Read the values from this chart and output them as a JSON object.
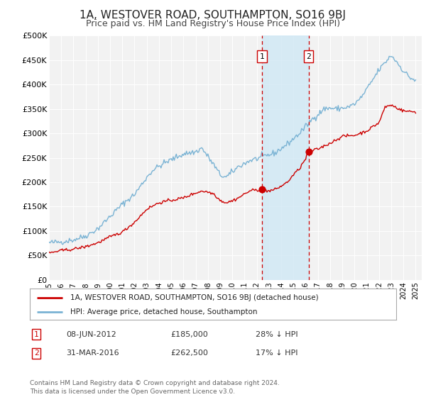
{
  "title": "1A, WESTOVER ROAD, SOUTHAMPTON, SO16 9BJ",
  "subtitle": "Price paid vs. HM Land Registry's House Price Index (HPI)",
  "title_fontsize": 11,
  "subtitle_fontsize": 9,
  "hpi_color": "#7ab3d4",
  "price_color": "#cc0000",
  "background_color": "#ffffff",
  "plot_bg_color": "#f2f2f2",
  "grid_color": "#ffffff",
  "ylim": [
    0,
    500000
  ],
  "yticks": [
    0,
    50000,
    100000,
    150000,
    200000,
    250000,
    300000,
    350000,
    400000,
    450000,
    500000
  ],
  "ytick_labels": [
    "£0",
    "£50K",
    "£100K",
    "£150K",
    "£200K",
    "£250K",
    "£300K",
    "£350K",
    "£400K",
    "£450K",
    "£500K"
  ],
  "xmin": 1995.0,
  "xmax": 2025.5,
  "sale1_date": 2012.44,
  "sale1_price": 185000,
  "sale2_date": 2016.25,
  "sale2_price": 262500,
  "sale1_label": "1",
  "sale2_label": "2",
  "legend_label_price": "1A, WESTOVER ROAD, SOUTHAMPTON, SO16 9BJ (detached house)",
  "legend_label_hpi": "HPI: Average price, detached house, Southampton",
  "annotation1_date": "08-JUN-2012",
  "annotation1_price": "£185,000",
  "annotation1_pct": "28% ↓ HPI",
  "annotation2_date": "31-MAR-2016",
  "annotation2_price": "£262,500",
  "annotation2_pct": "17% ↓ HPI",
  "footer": "Contains HM Land Registry data © Crown copyright and database right 2024.\nThis data is licensed under the Open Government Licence v3.0.",
  "hpi_anchors_x": [
    1995.0,
    1996.0,
    1997.0,
    1998.0,
    1999.0,
    2000.0,
    2001.0,
    2002.0,
    2003.0,
    2003.5,
    2004.5,
    2005.5,
    2006.0,
    2007.0,
    2007.5,
    2008.5,
    2009.0,
    2009.5,
    2010.5,
    2011.5,
    2012.0,
    2012.5,
    2013.5,
    2014.5,
    2015.5,
    2016.5,
    2017.5,
    2018.0,
    2018.5,
    2019.5,
    2020.0,
    2020.5,
    2021.0,
    2021.5,
    2022.0,
    2022.5,
    2023.0,
    2023.5,
    2024.0,
    2024.5,
    2025.0
  ],
  "hpi_anchors_y": [
    76000,
    78000,
    82000,
    90000,
    105000,
    130000,
    155000,
    175000,
    210000,
    225000,
    240000,
    252000,
    258000,
    262000,
    270000,
    235000,
    215000,
    210000,
    232000,
    245000,
    248000,
    252000,
    260000,
    278000,
    300000,
    328000,
    350000,
    352000,
    350000,
    354000,
    360000,
    372000,
    390000,
    410000,
    430000,
    445000,
    460000,
    445000,
    428000,
    415000,
    408000
  ],
  "price_anchors_x": [
    1995.0,
    1996.0,
    1997.0,
    1998.0,
    1999.0,
    2000.0,
    2001.0,
    2002.0,
    2003.0,
    2004.0,
    2005.0,
    2006.0,
    2007.0,
    2007.5,
    2008.0,
    2008.5,
    2009.0,
    2009.5,
    2010.0,
    2010.5,
    2011.0,
    2011.5,
    2012.0,
    2012.44,
    2013.0,
    2013.5,
    2014.0,
    2014.5,
    2015.0,
    2015.5,
    2016.0,
    2016.25,
    2017.0,
    2018.0,
    2019.0,
    2020.0,
    2021.0,
    2022.0,
    2022.5,
    2023.0,
    2023.5,
    2024.0,
    2025.0
  ],
  "price_anchors_y": [
    55000,
    60000,
    63000,
    68000,
    76000,
    88000,
    98000,
    118000,
    145000,
    158000,
    163000,
    168000,
    178000,
    182000,
    180000,
    176000,
    163000,
    158000,
    162000,
    168000,
    176000,
    183000,
    184000,
    185000,
    182000,
    185000,
    192000,
    200000,
    215000,
    228000,
    248000,
    262500,
    268000,
    280000,
    294000,
    296000,
    305000,
    322000,
    354000,
    358000,
    352000,
    346000,
    344000
  ]
}
